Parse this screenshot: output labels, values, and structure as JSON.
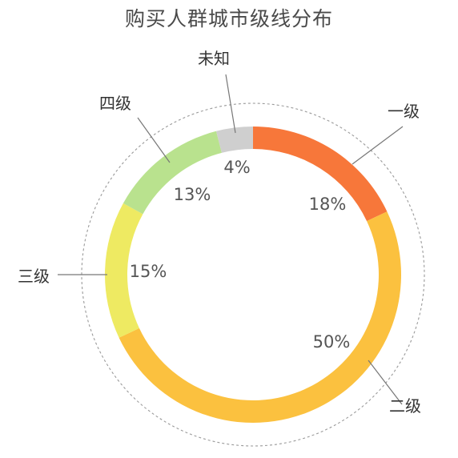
{
  "chart_data": {
    "type": "pie",
    "title": "购买人群城市级线分布",
    "categories": [
      "一级",
      "二级",
      "三级",
      "四级",
      "未知"
    ],
    "values": [
      18,
      50,
      15,
      13,
      4
    ],
    "labels": [
      "18%",
      "50%",
      "15%",
      "13%",
      "4%"
    ],
    "colors": [
      "#f7773a",
      "#fbc13f",
      "#eeea62",
      "#b9e28e",
      "#cfcfcf"
    ],
    "donut": true,
    "legend": "callouts"
  }
}
